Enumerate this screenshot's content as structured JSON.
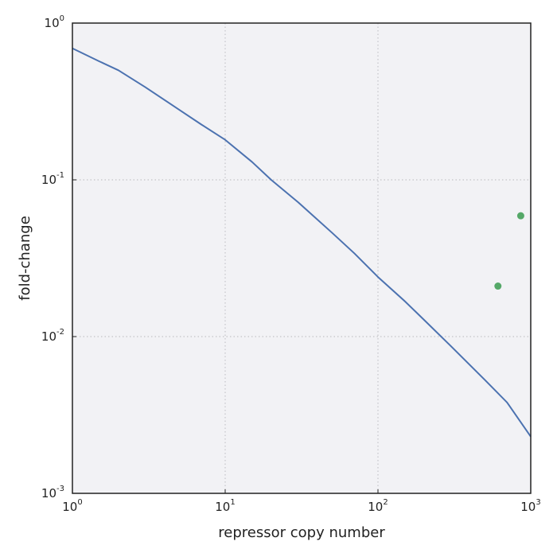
{
  "chart_data": {
    "type": "line",
    "xlabel": "repressor copy number",
    "ylabel": "fold-change",
    "xscale": "log",
    "yscale": "log",
    "xlim": [
      1,
      1000
    ],
    "ylim": [
      0.001,
      1
    ],
    "grid": true,
    "x_ticks": [
      {
        "value": 1,
        "base": "10",
        "exp": "0"
      },
      {
        "value": 10,
        "base": "10",
        "exp": "1"
      },
      {
        "value": 100,
        "base": "10",
        "exp": "2"
      },
      {
        "value": 1000,
        "base": "10",
        "exp": "3"
      }
    ],
    "y_ticks": [
      {
        "value": 0.001,
        "base": "10",
        "exp": "-3"
      },
      {
        "value": 0.01,
        "base": "10",
        "exp": "-2"
      },
      {
        "value": 0.1,
        "base": "10",
        "exp": "-1"
      },
      {
        "value": 1,
        "base": "10",
        "exp": "0"
      }
    ],
    "series": [
      {
        "kind": "line",
        "color": "#4c72b0",
        "x": [
          1,
          1.5,
          2,
          3,
          5,
          7,
          10,
          15,
          20,
          30,
          50,
          70,
          100,
          150,
          200,
          300,
          500,
          700,
          1000
        ],
        "y": [
          0.69,
          0.57,
          0.5,
          0.39,
          0.28,
          0.225,
          0.18,
          0.13,
          0.1,
          0.072,
          0.046,
          0.034,
          0.024,
          0.0168,
          0.0128,
          0.0087,
          0.0053,
          0.0038,
          0.0023
        ]
      },
      {
        "kind": "scatter",
        "color": "#55a868",
        "x": [
          610,
          860
        ],
        "y": [
          0.021,
          0.059
        ]
      }
    ]
  },
  "colors": {
    "plot_bg": "#f2f2f5",
    "frame": "#222222",
    "grid": "#c4c4c8"
  }
}
